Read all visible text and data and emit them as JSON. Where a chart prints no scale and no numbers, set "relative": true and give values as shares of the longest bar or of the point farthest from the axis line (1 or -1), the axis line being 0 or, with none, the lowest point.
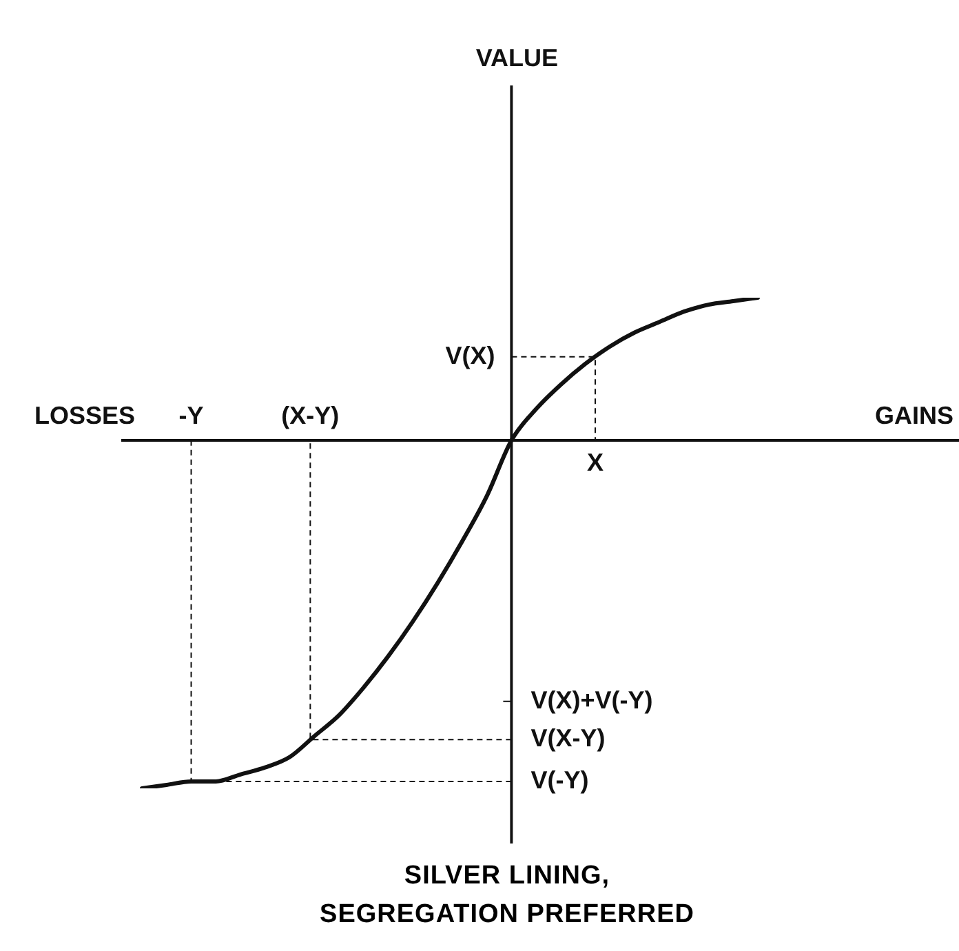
{
  "chart_data": {
    "type": "line",
    "relative": true,
    "xlabel": "GAINS",
    "categories": [
      null,
      null,
      null,
      null,
      null,
      null,
      null,
      null,
      null,
      null,
      null,
      null,
      null,
      null,
      null,
      null,
      null,
      null,
      null,
      null,
      null,
      null,
      null,
      null,
      null,
      null
    ],
    "series": [
      {
        "color": "#111111",
        "values": [
          -1,
          -0.99,
          -0.98,
          -0.98,
          -0.96,
          -0.94,
          -0.91,
          -0.85,
          -0.79,
          -0.71,
          -0.62,
          -0.52,
          -0.41,
          -0.29,
          -0.16,
          0,
          0.09,
          0.16,
          0.22,
          0.27,
          0.31,
          0.34,
          0.37,
          0.39,
          0.4,
          0.41
        ]
      }
    ],
    "marker": "none",
    "line_style": "solid",
    "legend": false,
    "ref_lines": [
      {
        "axis": "y",
        "value": 0.24,
        "label": "V(X)",
        "line_style": "dashed"
      },
      {
        "axis": "y",
        "value": -0.75,
        "label": "V(X)+V(-Y)"
      },
      {
        "axis": "y",
        "value": -0.86,
        "label": "V(X-Y)",
        "line_style": "dashed"
      },
      {
        "axis": "y",
        "value": -0.98,
        "label": "V(-Y)",
        "line_style": "dashed"
      }
    ],
    "annotations": [
      "X",
      "(X-Y)",
      "-Y",
      "VALUE",
      "LOSSES",
      "SILVER LINING,\nSEGREGATION PREFERRED"
    ]
  }
}
